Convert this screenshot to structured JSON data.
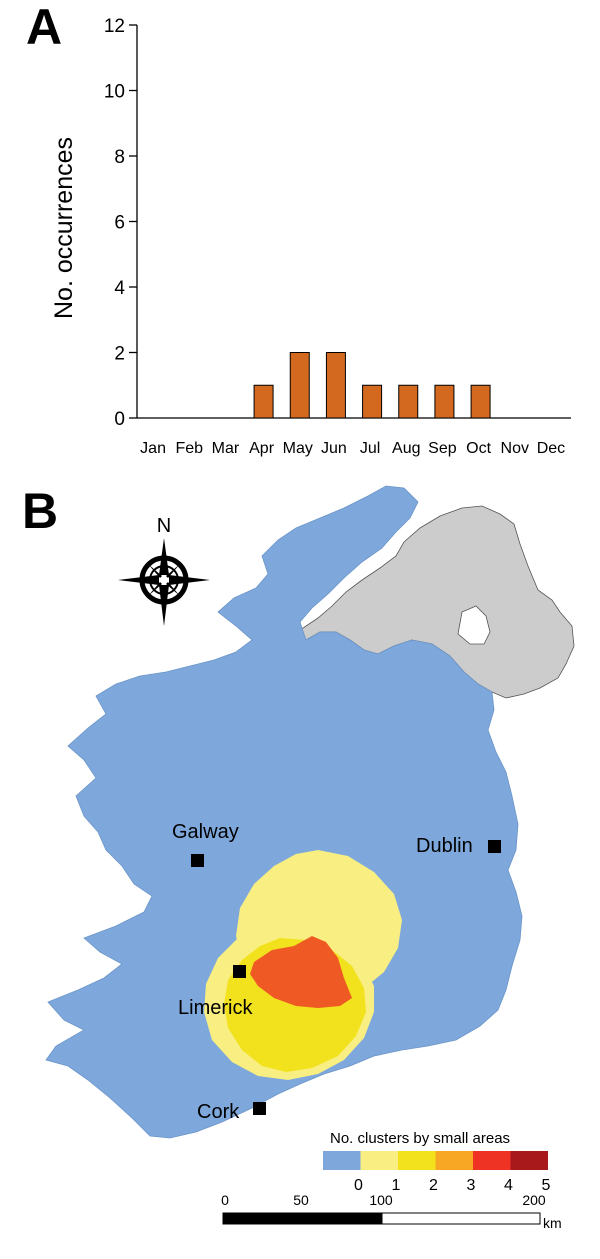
{
  "panel_a": {
    "letter": "A",
    "chart_data": {
      "type": "bar",
      "categories": [
        "Jan",
        "Feb",
        "Mar",
        "Apr",
        "May",
        "Jun",
        "Jul",
        "Aug",
        "Sep",
        "Oct",
        "Nov",
        "Dec"
      ],
      "values": [
        0,
        0,
        0,
        1,
        2,
        2,
        1,
        1,
        1,
        1,
        0,
        0
      ],
      "ylabel": "No. occurrences",
      "ylim": [
        0,
        12
      ],
      "yticks": [
        0,
        2,
        4,
        6,
        8,
        10,
        12
      ],
      "grid": false,
      "bar_color": "#d2691e"
    }
  },
  "panel_b": {
    "letter": "B",
    "north": "N",
    "cities": [
      {
        "name": "Galway"
      },
      {
        "name": "Dublin"
      },
      {
        "name": "Limerick"
      },
      {
        "name": "Cork"
      }
    ],
    "legend": {
      "title": "No. clusters by small areas",
      "classes": [
        {
          "value": "0",
          "color": "#7ea8dc"
        },
        {
          "value": "1",
          "color": "#f8ee82"
        },
        {
          "value": "2",
          "color": "#f2e21e"
        },
        {
          "value": "3",
          "color": "#f7a723"
        },
        {
          "value": "4",
          "color": "#ee3224"
        },
        {
          "value": "5",
          "color": "#a8191c"
        }
      ]
    },
    "scale_bar": {
      "labels": [
        "0",
        "50",
        "100",
        "200"
      ],
      "unit": "km"
    },
    "colors": {
      "land": "#7ea8dc",
      "northern_ireland": "#cccccc",
      "cluster_1": "#f8ee82",
      "cluster_2": "#f2e21e",
      "cluster_3": "#ef5a24"
    }
  }
}
